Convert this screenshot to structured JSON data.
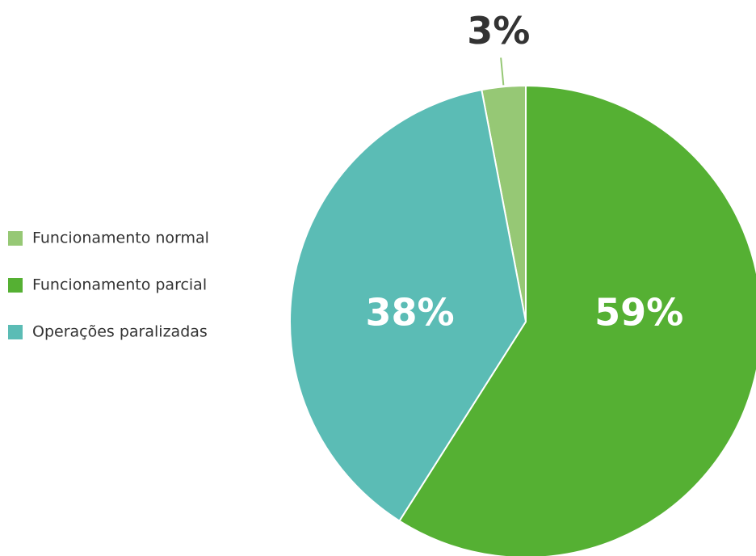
{
  "chart_data": {
    "type": "pie",
    "categories": [
      "Funcionamento normal",
      "Funcionamento parcial",
      "Operações paralizadas"
    ],
    "values": [
      3,
      59,
      38
    ],
    "value_labels": [
      "3%",
      "59%",
      "38%"
    ],
    "colors": [
      "#96c875",
      "#55b033",
      "#5bbcb5"
    ],
    "legend": "left"
  }
}
